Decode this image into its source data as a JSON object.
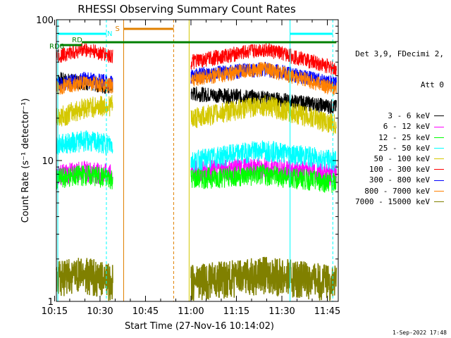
{
  "chart_data": {
    "type": "line",
    "title": "RHESSI Observing Summary Count Rates",
    "xlabel": "Start Time (27-Nov-16 10:14:02)",
    "ylabel": "Count Rate (s⁻¹ detector⁻¹)",
    "y_scale": "log",
    "ylim": [
      1,
      100
    ],
    "xlim_minutes": [
      10.26,
      11.81
    ],
    "x_ticks": [
      {
        "label": "10:15",
        "hours": 10.25
      },
      {
        "label": "10:30",
        "hours": 10.5
      },
      {
        "label": "10:45",
        "hours": 10.75
      },
      {
        "label": "11:00",
        "hours": 11.0
      },
      {
        "label": "11:15",
        "hours": 11.25
      },
      {
        "label": "11:30",
        "hours": 11.5
      },
      {
        "label": "11:45",
        "hours": 11.75
      }
    ],
    "y_ticks": [
      {
        "label": "1",
        "value": 1
      },
      {
        "label": "10",
        "value": 10
      },
      {
        "label": "100",
        "value": 100
      }
    ],
    "legend_title": [
      "Det 3,9, FDecimi 2,",
      "Att 0"
    ],
    "series": [
      {
        "name": "3 - 6 keV",
        "color": "#000000",
        "values_seg1": [
          38,
          36,
          33
        ],
        "values_seg2": [
          30,
          28,
          24
        ]
      },
      {
        "name": "6 - 12 keV",
        "color": "#ff00ff",
        "values_seg1": [
          8,
          8.5,
          8
        ],
        "values_seg2": [
          8.5,
          9,
          8
        ]
      },
      {
        "name": "12 - 25 keV",
        "color": "#00ff00",
        "values_seg1": [
          7.5,
          8,
          7.5
        ],
        "values_seg2": [
          7.5,
          8,
          7
        ]
      },
      {
        "name": "25 - 50 keV",
        "color": "#00ffff",
        "values_seg1": [
          13,
          14,
          13
        ],
        "values_seg2": [
          10,
          12,
          10
        ]
      },
      {
        "name": "50 - 100 keV",
        "color": "#d4c800",
        "values_seg1": [
          20,
          24,
          25
        ],
        "values_seg2": [
          20,
          25,
          18
        ]
      },
      {
        "name": "100 - 300 keV",
        "color": "#ff0000",
        "values_seg1": [
          55,
          62,
          55
        ],
        "values_seg2": [
          50,
          62,
          45
        ]
      },
      {
        "name": "300 - 800 keV",
        "color": "#0000ff",
        "values_seg1": [
          35,
          38,
          36
        ],
        "values_seg2": [
          40,
          45,
          35
        ]
      },
      {
        "name": "800 - 7000 keV",
        "color": "#ff8000",
        "values_seg1": [
          33,
          36,
          34
        ],
        "values_seg2": [
          38,
          45,
          32
        ]
      },
      {
        "name": "7000 - 15000 keV",
        "color": "#808000",
        "values_seg1": [
          1.5,
          1.6,
          1.4
        ],
        "values_seg2": [
          1.4,
          1.6,
          1.4
        ]
      }
    ],
    "flag_labels": {
      "n": "N",
      "s": "S",
      "rd": "RD",
      "rd6": "RD6"
    },
    "footer": "1-Sep-2022 17:48"
  }
}
